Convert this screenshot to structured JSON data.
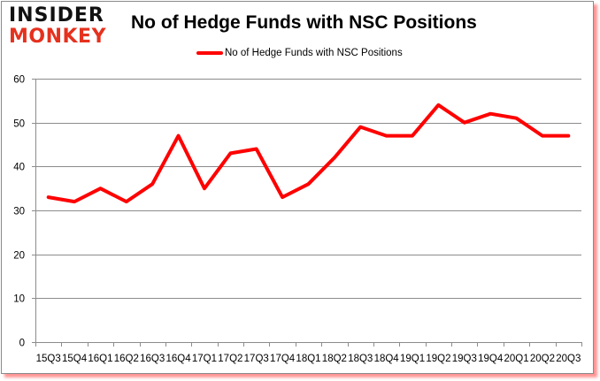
{
  "brand": {
    "line1": "INSIDER",
    "line2": "MONKEY",
    "line1_color": "#111111",
    "line2_color": "#e5311e"
  },
  "header": {
    "title": "No of Hedge Funds with NSC Positions"
  },
  "legend": {
    "label": "No of Hedge Funds with NSC Positions",
    "color": "#ff0000"
  },
  "chart_data": {
    "type": "line",
    "title": "No of Hedge Funds with NSC Positions",
    "xlabel": "",
    "ylabel": "",
    "ylim": [
      0,
      60
    ],
    "yticks": [
      0,
      10,
      20,
      30,
      40,
      50,
      60
    ],
    "grid": true,
    "legend_position": "top",
    "categories": [
      "15Q3",
      "15Q4",
      "16Q1",
      "16Q2",
      "16Q3",
      "16Q4",
      "17Q1",
      "17Q2",
      "17Q3",
      "17Q4",
      "18Q1",
      "18Q2",
      "18Q3",
      "18Q4",
      "19Q1",
      "19Q2",
      "19Q3",
      "19Q4",
      "20Q1",
      "20Q2",
      "20Q3"
    ],
    "series": [
      {
        "name": "No of Hedge Funds with NSC Positions",
        "color": "#ff0000",
        "values": [
          33,
          32,
          35,
          32,
          36,
          47,
          35,
          43,
          44,
          33,
          36,
          42,
          49,
          47,
          47,
          54,
          50,
          52,
          51,
          47,
          47
        ]
      }
    ]
  }
}
